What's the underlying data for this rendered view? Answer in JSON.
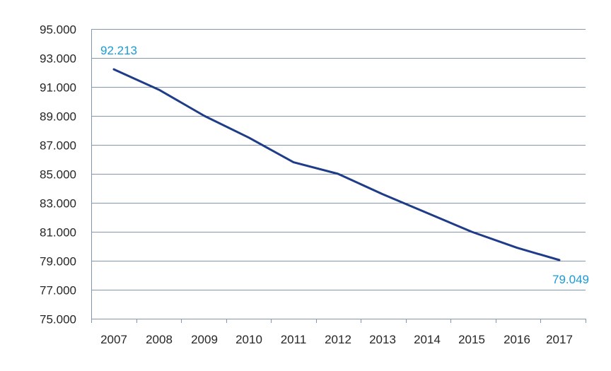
{
  "chart_data": {
    "type": "line",
    "title": "",
    "xlabel": "",
    "ylabel": "",
    "categories": [
      "2007",
      "2008",
      "2009",
      "2010",
      "2011",
      "2012",
      "2013",
      "2014",
      "2015",
      "2016",
      "2017"
    ],
    "series": [
      {
        "values": [
          92213,
          90800,
          89000,
          87500,
          85800,
          85000,
          83600,
          82300,
          81000,
          79900,
          79049
        ]
      }
    ],
    "ylim": [
      75000,
      95000
    ],
    "yticks": [
      75000,
      77000,
      79000,
      81000,
      83000,
      85000,
      87000,
      89000,
      91000,
      93000,
      95000
    ],
    "ytick_labels": [
      "75.000",
      "77.000",
      "79.000",
      "81.000",
      "83.000",
      "85.000",
      "87.000",
      "89.000",
      "91.000",
      "93.000",
      "95.000"
    ],
    "data_labels": [
      {
        "index": 0,
        "text": "92.213"
      },
      {
        "index": 10,
        "text": "79.049"
      }
    ],
    "grid": true,
    "legend": "none",
    "colors": {
      "line": "#1f3c88",
      "data_label": "#1a9bd7",
      "grid": "#8497b0",
      "text": "#262626"
    }
  }
}
